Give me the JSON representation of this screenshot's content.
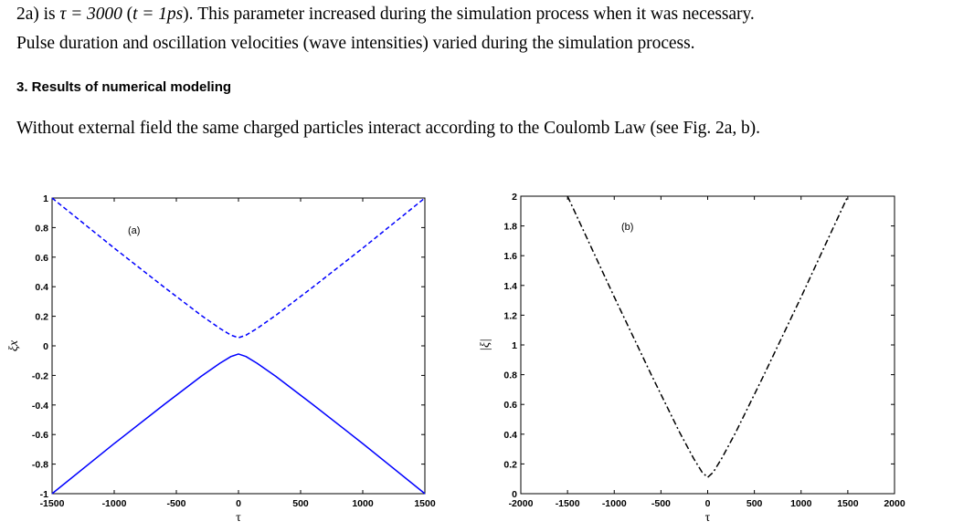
{
  "text": {
    "line1_a": "2a) is ",
    "line1_tau_eq": "τ = 3000",
    "line1_b": " (",
    "line1_t_eq": "t = 1ps",
    "line1_c": "). This parameter increased during the simulation process when it was necessary.",
    "line2": "Pulse duration and oscillation velocities (wave intensities) varied during the simulation process.",
    "heading": "3. Results of numerical modeling",
    "line3": "Without external field the same charged particles interact according to the Coulomb Law (see Fig. 2a, b)."
  },
  "chart_data": [
    {
      "type": "line",
      "annotation": "(a)",
      "xlabel": "τ",
      "ylabel": "ξx",
      "xlim": [
        -1500,
        1500
      ],
      "ylim": [
        -1,
        1
      ],
      "xticks": [
        "-1500",
        "-1000",
        "-500",
        "0",
        "500",
        "1000",
        "1500"
      ],
      "yticks": [
        "-1",
        "-0.8",
        "-0.6",
        "-0.4",
        "-0.2",
        "0",
        "0.2",
        "0.4",
        "0.6",
        "0.8",
        "1"
      ],
      "grid": false,
      "series": [
        {
          "style": "dashed",
          "color": "#0000ff",
          "x": [
            -1500,
            -1000,
            -600,
            -300,
            -150,
            -60,
            0,
            60,
            150,
            300,
            600,
            1000,
            1500
          ],
          "y": [
            1.0,
            0.661,
            0.398,
            0.206,
            0.118,
            0.072,
            0.055,
            0.072,
            0.118,
            0.206,
            0.398,
            0.661,
            1.0
          ]
        },
        {
          "style": "solid",
          "color": "#0000ff",
          "x": [
            -1500,
            -1000,
            -600,
            -300,
            -150,
            -60,
            0,
            60,
            150,
            300,
            600,
            1000,
            1500
          ],
          "y": [
            -1.0,
            -0.661,
            -0.398,
            -0.206,
            -0.118,
            -0.072,
            -0.055,
            -0.072,
            -0.118,
            -0.206,
            -0.398,
            -0.661,
            -1.0
          ]
        }
      ]
    },
    {
      "type": "line",
      "annotation": "(b)",
      "xlabel": "τ",
      "ylabel": "|ξ|",
      "xlim": [
        -2000,
        2000
      ],
      "ylim": [
        0,
        2
      ],
      "xticks": [
        "-2000",
        "-1500",
        "-1000",
        "-500",
        "0",
        "500",
        "1000",
        "1500",
        "2000"
      ],
      "yticks": [
        "0",
        "0.2",
        "0.4",
        "0.6",
        "0.8",
        "1",
        "1.2",
        "1.4",
        "1.6",
        "1.8",
        "2"
      ],
      "grid": false,
      "series": [
        {
          "style": "dashdot",
          "color": "#000000",
          "x": [
            -1500,
            -1000,
            -600,
            -300,
            -150,
            -60,
            0,
            60,
            150,
            300,
            600,
            1000,
            1500
          ],
          "y": [
            2.0,
            1.322,
            0.796,
            0.412,
            0.236,
            0.144,
            0.11,
            0.144,
            0.236,
            0.412,
            0.796,
            1.322,
            2.0
          ]
        }
      ]
    }
  ]
}
